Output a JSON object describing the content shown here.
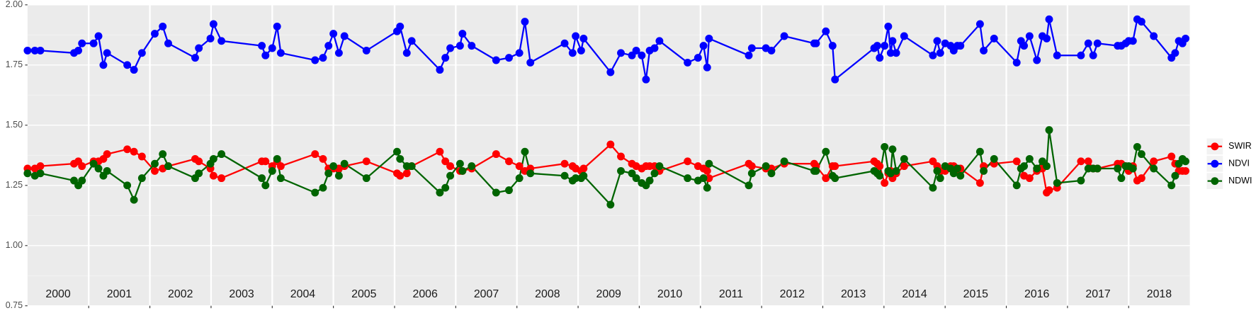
{
  "chart_data": {
    "type": "line",
    "x": [
      2000.0,
      2000.12,
      2000.21,
      2000.76,
      2000.83,
      2000.89,
      2001.08,
      2001.16,
      2001.24,
      2001.3,
      2001.63,
      2001.74,
      2001.87,
      2002.08,
      2002.21,
      2002.3,
      2002.74,
      2002.8,
      2002.99,
      2003.04,
      2003.17,
      2003.83,
      2003.89,
      2004.0,
      2004.08,
      2004.14,
      2004.7,
      2004.83,
      2004.92,
      2005.0,
      2005.09,
      2005.18,
      2005.54,
      2006.04,
      2006.09,
      2006.2,
      2006.28,
      2006.74,
      2006.83,
      2006.91,
      2007.07,
      2007.11,
      2007.26,
      2007.66,
      2007.87,
      2008.04,
      2008.13,
      2008.22,
      2008.78,
      2008.91,
      2008.96,
      2009.05,
      2009.09,
      2009.53,
      2009.7,
      2009.88,
      2009.95,
      2010.04,
      2010.11,
      2010.17,
      2010.25,
      2010.33,
      2010.79,
      2010.96,
      2011.05,
      2011.11,
      2011.14,
      2011.79,
      2011.84,
      2012.07,
      2012.16,
      2012.37,
      2012.86,
      2012.89,
      2013.05,
      2013.16,
      2013.2,
      2013.84,
      2013.89,
      2013.93,
      2014.01,
      2014.07,
      2014.11,
      2014.14,
      2014.2,
      2014.33,
      2014.8,
      2014.87,
      2014.92,
      2015.0,
      2015.09,
      2015.14,
      2015.2,
      2015.25,
      2015.57,
      2015.63,
      2015.8,
      2016.17,
      2016.24,
      2016.29,
      2016.38,
      2016.5,
      2016.59,
      2016.66,
      2016.7,
      2016.83,
      2017.22,
      2017.34,
      2017.42,
      2017.49,
      2017.82,
      2017.88,
      2017.95,
      2018.0,
      2018.07,
      2018.14,
      2018.21,
      2018.41,
      2018.7,
      2018.76,
      2018.82,
      2018.88,
      2018.93
    ],
    "series": [
      {
        "name": "SWIR",
        "color": "#ff0000",
        "values": [
          1.32,
          1.32,
          1.33,
          1.34,
          1.35,
          1.33,
          1.35,
          1.35,
          1.36,
          1.38,
          1.4,
          1.39,
          1.37,
          1.31,
          1.32,
          1.33,
          1.36,
          1.35,
          1.32,
          1.29,
          1.28,
          1.35,
          1.35,
          1.33,
          1.35,
          1.33,
          1.38,
          1.36,
          1.32,
          1.32,
          1.32,
          1.33,
          1.35,
          1.3,
          1.29,
          1.3,
          1.33,
          1.39,
          1.35,
          1.33,
          1.31,
          1.31,
          1.32,
          1.38,
          1.35,
          1.33,
          1.31,
          1.32,
          1.34,
          1.33,
          1.32,
          1.31,
          1.32,
          1.42,
          1.37,
          1.34,
          1.33,
          1.32,
          1.33,
          1.33,
          1.33,
          1.31,
          1.35,
          1.33,
          1.32,
          1.31,
          1.28,
          1.34,
          1.33,
          1.32,
          1.32,
          1.34,
          1.34,
          1.33,
          1.28,
          1.33,
          1.33,
          1.35,
          1.34,
          1.33,
          1.26,
          1.3,
          1.31,
          1.28,
          1.3,
          1.33,
          1.35,
          1.33,
          1.31,
          1.31,
          1.33,
          1.33,
          1.31,
          1.32,
          1.26,
          1.33,
          1.34,
          1.35,
          1.32,
          1.29,
          1.28,
          1.31,
          1.32,
          1.22,
          1.23,
          1.24,
          1.35,
          1.35,
          1.32,
          1.32,
          1.34,
          1.34,
          1.33,
          1.31,
          1.33,
          1.27,
          1.28,
          1.35,
          1.37,
          1.34,
          1.31,
          1.31,
          1.31
        ]
      },
      {
        "name": "NDVI",
        "color": "#0000ff",
        "values": [
          1.81,
          1.81,
          1.81,
          1.8,
          1.81,
          1.84,
          1.84,
          1.87,
          1.75,
          1.8,
          1.75,
          1.73,
          1.8,
          1.88,
          1.91,
          1.84,
          1.78,
          1.82,
          1.86,
          1.92,
          1.85,
          1.83,
          1.79,
          1.82,
          1.91,
          1.8,
          1.77,
          1.78,
          1.83,
          1.88,
          1.8,
          1.87,
          1.81,
          1.89,
          1.91,
          1.8,
          1.85,
          1.73,
          1.78,
          1.82,
          1.83,
          1.88,
          1.83,
          1.77,
          1.78,
          1.8,
          1.93,
          1.76,
          1.84,
          1.8,
          1.87,
          1.81,
          1.86,
          1.72,
          1.8,
          1.79,
          1.81,
          1.79,
          1.69,
          1.81,
          1.82,
          1.85,
          1.76,
          1.78,
          1.83,
          1.74,
          1.86,
          1.79,
          1.82,
          1.82,
          1.81,
          1.87,
          1.84,
          1.84,
          1.89,
          1.83,
          1.69,
          1.82,
          1.83,
          1.78,
          1.83,
          1.91,
          1.8,
          1.85,
          1.8,
          1.87,
          1.79,
          1.85,
          1.8,
          1.84,
          1.83,
          1.81,
          1.83,
          1.83,
          1.92,
          1.81,
          1.86,
          1.76,
          1.85,
          1.83,
          1.87,
          1.77,
          1.87,
          1.86,
          1.94,
          1.79,
          1.79,
          1.84,
          1.79,
          1.84,
          1.83,
          1.83,
          1.84,
          1.85,
          1.85,
          1.94,
          1.93,
          1.87,
          1.78,
          1.8,
          1.85,
          1.84,
          1.86
        ]
      },
      {
        "name": "NDWI",
        "color": "#006400",
        "values": [
          1.3,
          1.29,
          1.3,
          1.27,
          1.25,
          1.27,
          1.34,
          1.32,
          1.29,
          1.31,
          1.25,
          1.19,
          1.28,
          1.34,
          1.38,
          1.33,
          1.28,
          1.3,
          1.34,
          1.36,
          1.38,
          1.28,
          1.25,
          1.31,
          1.36,
          1.28,
          1.22,
          1.24,
          1.3,
          1.33,
          1.29,
          1.34,
          1.28,
          1.39,
          1.36,
          1.33,
          1.33,
          1.22,
          1.24,
          1.29,
          1.34,
          1.31,
          1.33,
          1.22,
          1.23,
          1.28,
          1.39,
          1.3,
          1.29,
          1.27,
          1.28,
          1.28,
          1.29,
          1.17,
          1.31,
          1.3,
          1.28,
          1.26,
          1.25,
          1.27,
          1.3,
          1.33,
          1.28,
          1.27,
          1.28,
          1.24,
          1.34,
          1.25,
          1.3,
          1.33,
          1.3,
          1.35,
          1.31,
          1.31,
          1.39,
          1.29,
          1.28,
          1.31,
          1.3,
          1.29,
          1.41,
          1.31,
          1.3,
          1.4,
          1.31,
          1.36,
          1.24,
          1.31,
          1.28,
          1.33,
          1.32,
          1.3,
          1.32,
          1.29,
          1.39,
          1.31,
          1.36,
          1.25,
          1.32,
          1.33,
          1.36,
          1.32,
          1.35,
          1.33,
          1.48,
          1.26,
          1.27,
          1.32,
          1.32,
          1.32,
          1.32,
          1.28,
          1.33,
          1.33,
          1.32,
          1.41,
          1.38,
          1.32,
          1.25,
          1.29,
          1.34,
          1.36,
          1.35
        ]
      }
    ],
    "xlim": [
      2000,
      2019
    ],
    "xticks": [
      2001,
      2002,
      2003,
      2004,
      2005,
      2006,
      2007,
      2008,
      2009,
      2010,
      2011,
      2012,
      2013,
      2014,
      2015,
      2016,
      2017,
      2018
    ],
    "year_labels": [
      2000,
      2001,
      2002,
      2003,
      2004,
      2005,
      2006,
      2007,
      2008,
      2009,
      2010,
      2011,
      2012,
      2013,
      2014,
      2015,
      2016,
      2017,
      2018
    ],
    "ylim": [
      0.75,
      2.0
    ],
    "yticks": [
      0.75,
      {
        "value": 1.0,
        "label": "1.00"
      },
      1.25,
      {
        "value": 1.5,
        "label": "1.50"
      },
      1.75,
      {
        "value": 2.0,
        "label": "2.00"
      }
    ],
    "grid": true,
    "legend": "right"
  }
}
